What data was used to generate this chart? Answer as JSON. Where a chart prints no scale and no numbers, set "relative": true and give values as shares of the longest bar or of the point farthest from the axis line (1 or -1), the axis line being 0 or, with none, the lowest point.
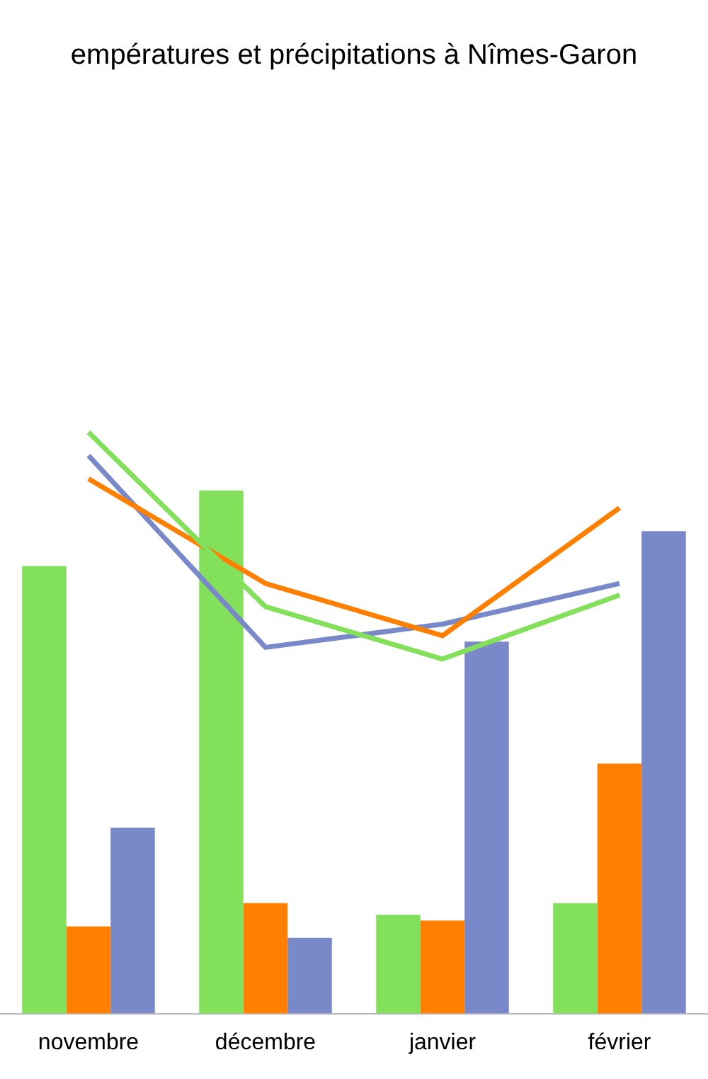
{
  "chart_data": {
    "type": "bar",
    "title": "empératures et précipitations à Nîmes-Garon",
    "relative": true,
    "categories": [
      "novembre",
      "décembre",
      "janvier",
      "février"
    ],
    "series": [
      {
        "color": "#83e05a",
        "values": [
          0.77,
          0.9,
          0.17,
          0.19
        ]
      },
      {
        "color": "#ff8000",
        "values": [
          0.15,
          0.19,
          0.16,
          0.43
        ]
      },
      {
        "color": "#7888c9",
        "values": [
          0.32,
          0.13,
          0.64,
          0.83
        ]
      },
      {
        "type": "line",
        "color": "#83e05a",
        "values": [
          1,
          0.7,
          0.61,
          0.72
        ]
      },
      {
        "type": "line",
        "color": "#ff8000",
        "values": [
          0.92,
          0.74,
          0.65,
          0.87
        ]
      },
      {
        "type": "line",
        "color": "#7888c9",
        "values": [
          0.96,
          0.63,
          0.67,
          0.74
        ]
      }
    ]
  }
}
